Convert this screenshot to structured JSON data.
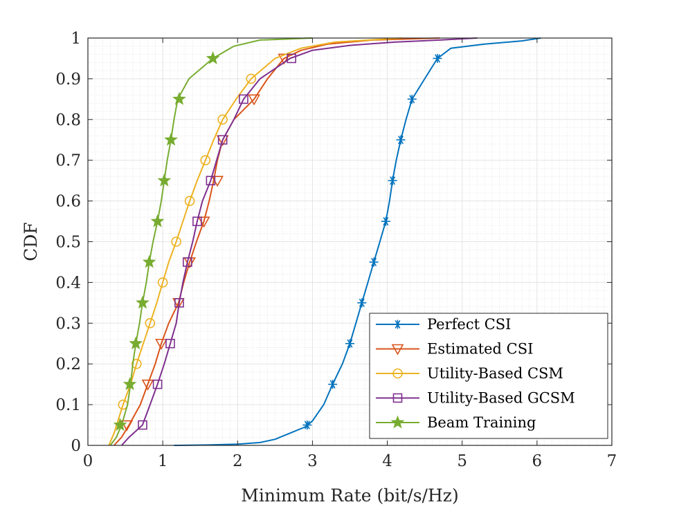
{
  "chart_data": {
    "type": "line",
    "title": "",
    "xlabel": "Minimum Rate (bit/s/Hz)",
    "ylabel": "CDF",
    "xlim": [
      0,
      7
    ],
    "ylim": [
      0,
      1
    ],
    "xticks": [
      "0",
      "1",
      "2",
      "3",
      "4",
      "5",
      "6",
      "7"
    ],
    "yticks": [
      "0",
      "0.1",
      "0.2",
      "0.3",
      "0.4",
      "0.5",
      "0.6",
      "0.7",
      "0.8",
      "0.9",
      "1"
    ],
    "grid": "major and minor",
    "legend_position": "bottom-right",
    "series": [
      {
        "name": "Perfect CSI",
        "color": "#0072BD",
        "marker": "asterisk",
        "points": [
          [
            1.15,
            0
          ],
          [
            1.6,
            0.001
          ],
          [
            2.0,
            0.003
          ],
          [
            2.3,
            0.007
          ],
          [
            2.5,
            0.015
          ],
          [
            2.7,
            0.03
          ],
          [
            2.9,
            0.045
          ],
          [
            3.0,
            0.06
          ],
          [
            3.15,
            0.1
          ],
          [
            3.27,
            0.15
          ],
          [
            3.4,
            0.2
          ],
          [
            3.5,
            0.25
          ],
          [
            3.58,
            0.3
          ],
          [
            3.66,
            0.35
          ],
          [
            3.74,
            0.4
          ],
          [
            3.82,
            0.45
          ],
          [
            3.9,
            0.5
          ],
          [
            3.98,
            0.55
          ],
          [
            4.03,
            0.6
          ],
          [
            4.07,
            0.65
          ],
          [
            4.12,
            0.7
          ],
          [
            4.18,
            0.75
          ],
          [
            4.25,
            0.8
          ],
          [
            4.33,
            0.85
          ],
          [
            4.5,
            0.9
          ],
          [
            4.67,
            0.95
          ],
          [
            4.85,
            0.975
          ],
          [
            5.3,
            0.985
          ],
          [
            5.8,
            0.993
          ],
          [
            6.05,
            1.0
          ]
        ],
        "marker_points": [
          [
            2.93,
            0.05
          ],
          [
            3.27,
            0.15
          ],
          [
            3.5,
            0.25
          ],
          [
            3.66,
            0.35
          ],
          [
            3.82,
            0.45
          ],
          [
            3.98,
            0.55
          ],
          [
            4.07,
            0.65
          ],
          [
            4.18,
            0.75
          ],
          [
            4.33,
            0.85
          ],
          [
            4.67,
            0.95
          ]
        ]
      },
      {
        "name": "Estimated CSI",
        "color": "#D95319",
        "marker": "triangle-down",
        "points": [
          [
            0.35,
            0
          ],
          [
            0.45,
            0.02
          ],
          [
            0.55,
            0.05
          ],
          [
            0.7,
            0.1
          ],
          [
            0.8,
            0.15
          ],
          [
            0.9,
            0.2
          ],
          [
            0.98,
            0.25
          ],
          [
            1.08,
            0.3
          ],
          [
            1.21,
            0.35
          ],
          [
            1.28,
            0.4
          ],
          [
            1.36,
            0.45
          ],
          [
            1.45,
            0.5
          ],
          [
            1.55,
            0.55
          ],
          [
            1.62,
            0.6
          ],
          [
            1.68,
            0.65
          ],
          [
            1.73,
            0.7
          ],
          [
            1.8,
            0.75
          ],
          [
            1.95,
            0.8
          ],
          [
            2.22,
            0.85
          ],
          [
            2.4,
            0.9
          ],
          [
            2.62,
            0.95
          ],
          [
            2.85,
            0.97
          ],
          [
            3.2,
            0.985
          ],
          [
            3.8,
            0.995
          ],
          [
            4.7,
            1.0
          ]
        ],
        "marker_points": [
          [
            0.52,
            0.05
          ],
          [
            0.8,
            0.15
          ],
          [
            0.98,
            0.25
          ],
          [
            1.21,
            0.35
          ],
          [
            1.36,
            0.45
          ],
          [
            1.55,
            0.55
          ],
          [
            1.73,
            0.65
          ],
          [
            1.8,
            0.75
          ],
          [
            2.22,
            0.85
          ],
          [
            2.62,
            0.95
          ]
        ]
      },
      {
        "name": "Utility-Based CSM",
        "color": "#EDB120",
        "marker": "circle",
        "points": [
          [
            0.28,
            0
          ],
          [
            0.35,
            0.03
          ],
          [
            0.47,
            0.1
          ],
          [
            0.57,
            0.15
          ],
          [
            0.65,
            0.2
          ],
          [
            0.74,
            0.25
          ],
          [
            0.83,
            0.3
          ],
          [
            0.92,
            0.35
          ],
          [
            1.0,
            0.4
          ],
          [
            1.08,
            0.45
          ],
          [
            1.18,
            0.5
          ],
          [
            1.27,
            0.55
          ],
          [
            1.36,
            0.6
          ],
          [
            1.46,
            0.65
          ],
          [
            1.57,
            0.7
          ],
          [
            1.68,
            0.75
          ],
          [
            1.8,
            0.8
          ],
          [
            1.98,
            0.85
          ],
          [
            2.18,
            0.9
          ],
          [
            2.5,
            0.95
          ],
          [
            2.85,
            0.975
          ],
          [
            3.3,
            0.99
          ],
          [
            4.2,
            1.0
          ]
        ],
        "marker_points": [
          [
            0.47,
            0.1
          ],
          [
            0.65,
            0.2
          ],
          [
            0.83,
            0.3
          ],
          [
            1.0,
            0.4
          ],
          [
            1.18,
            0.5
          ],
          [
            1.36,
            0.6
          ],
          [
            1.57,
            0.7
          ],
          [
            1.8,
            0.8
          ],
          [
            2.18,
            0.9
          ]
        ]
      },
      {
        "name": "Utility-Based GCSM",
        "color": "#7E2F8E",
        "marker": "square",
        "points": [
          [
            0.45,
            0
          ],
          [
            0.55,
            0.02
          ],
          [
            0.73,
            0.05
          ],
          [
            0.83,
            0.1
          ],
          [
            0.93,
            0.15
          ],
          [
            1.02,
            0.2
          ],
          [
            1.1,
            0.25
          ],
          [
            1.18,
            0.3
          ],
          [
            1.22,
            0.35
          ],
          [
            1.27,
            0.4
          ],
          [
            1.33,
            0.45
          ],
          [
            1.4,
            0.5
          ],
          [
            1.46,
            0.55
          ],
          [
            1.53,
            0.6
          ],
          [
            1.64,
            0.65
          ],
          [
            1.72,
            0.7
          ],
          [
            1.8,
            0.75
          ],
          [
            1.95,
            0.8
          ],
          [
            2.08,
            0.85
          ],
          [
            2.3,
            0.9
          ],
          [
            2.7,
            0.95
          ],
          [
            3.0,
            0.97
          ],
          [
            3.5,
            0.982
          ],
          [
            4.1,
            0.99
          ],
          [
            4.7,
            0.995
          ],
          [
            5.2,
            1.0
          ]
        ],
        "marker_points": [
          [
            0.73,
            0.05
          ],
          [
            0.93,
            0.15
          ],
          [
            1.1,
            0.25
          ],
          [
            1.22,
            0.35
          ],
          [
            1.33,
            0.45
          ],
          [
            1.46,
            0.55
          ],
          [
            1.64,
            0.65
          ],
          [
            1.8,
            0.75
          ],
          [
            2.08,
            0.85
          ],
          [
            2.72,
            0.95
          ]
        ]
      },
      {
        "name": "Beam Training",
        "color": "#77AC30",
        "marker": "star",
        "points": [
          [
            0.3,
            0
          ],
          [
            0.38,
            0.02
          ],
          [
            0.45,
            0.05
          ],
          [
            0.53,
            0.1
          ],
          [
            0.57,
            0.15
          ],
          [
            0.6,
            0.2
          ],
          [
            0.64,
            0.25
          ],
          [
            0.69,
            0.3
          ],
          [
            0.73,
            0.35
          ],
          [
            0.78,
            0.4
          ],
          [
            0.82,
            0.45
          ],
          [
            0.87,
            0.5
          ],
          [
            0.93,
            0.55
          ],
          [
            0.98,
            0.6
          ],
          [
            1.02,
            0.65
          ],
          [
            1.06,
            0.7
          ],
          [
            1.11,
            0.75
          ],
          [
            1.15,
            0.8
          ],
          [
            1.2,
            0.85
          ],
          [
            1.35,
            0.9
          ],
          [
            1.67,
            0.95
          ],
          [
            1.95,
            0.98
          ],
          [
            2.3,
            0.995
          ],
          [
            3.0,
            1.0
          ]
        ],
        "marker_points": [
          [
            0.43,
            0.05
          ],
          [
            0.56,
            0.15
          ],
          [
            0.64,
            0.25
          ],
          [
            0.73,
            0.35
          ],
          [
            0.82,
            0.45
          ],
          [
            0.93,
            0.55
          ],
          [
            1.02,
            0.65
          ],
          [
            1.11,
            0.75
          ],
          [
            1.22,
            0.85
          ],
          [
            1.67,
            0.95
          ]
        ]
      }
    ]
  }
}
